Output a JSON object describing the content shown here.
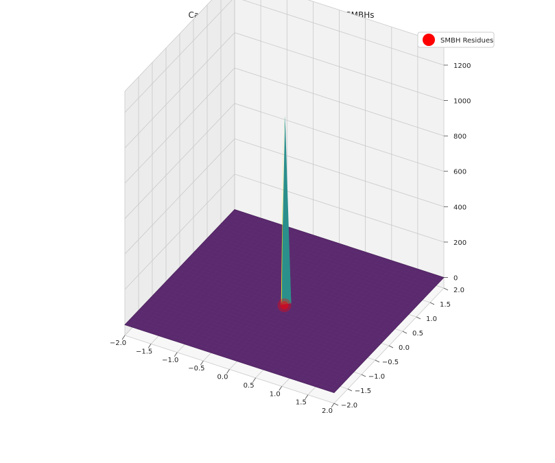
{
  "chart_data": {
    "type": "surface3d",
    "title": "Cauchy Residue Theorem Analogy for SMBHs",
    "xlabel": "",
    "ylabel": "",
    "zlabel": "",
    "xlim": [
      -2.0,
      2.0
    ],
    "ylim": [
      -2.0,
      2.0
    ],
    "zlim": [
      -60,
      1320
    ],
    "x_ticks": [
      "−2.0",
      "−1.5",
      "−1.0",
      "−0.5",
      "0.0",
      "0.5",
      "1.0",
      "1.5",
      "2.0"
    ],
    "y_ticks": [
      "−2.0",
      "−1.5",
      "−1.0",
      "−0.5",
      "0.0",
      "0.5",
      "1.0",
      "1.5",
      "2.0"
    ],
    "z_ticks": [
      "0",
      "200",
      "400",
      "600",
      "800",
      "1000",
      "1200"
    ],
    "x_tick_values": [
      -2.0,
      -1.5,
      -1.0,
      -0.5,
      0.0,
      0.5,
      1.0,
      1.5,
      2.0
    ],
    "y_tick_values": [
      -2.0,
      -1.5,
      -1.0,
      -0.5,
      0.0,
      0.5,
      1.0,
      1.5,
      2.0
    ],
    "z_tick_values": [
      0,
      200,
      400,
      600,
      800,
      1000,
      1200
    ],
    "grid": true,
    "colormap": "viridis",
    "surface": {
      "baseline_value": 0,
      "peak": {
        "x": 0.0,
        "y": 0.0,
        "z": 1050
      }
    },
    "series": [
      {
        "name": "SMBH Residues",
        "type": "scatter",
        "points": [
          {
            "x": 0.0,
            "y": 0.0,
            "z": 0
          }
        ],
        "color": "#ff0000"
      }
    ],
    "legend": {
      "position": "top-right",
      "label": "SMBH Residues"
    },
    "colors": {
      "surface": "#5b2a6e",
      "surface_edge": "#4a1f5c",
      "pane": "#f2f2f2",
      "pane_side": "#ececec",
      "grid": "#c9c9c9",
      "spike_yellow": "#f4e81f",
      "spike_green": "#3cbd74",
      "spike_teal": "#2b8f8c",
      "spike_blue": "#3a5ea8",
      "marker": "#ff0000"
    }
  }
}
